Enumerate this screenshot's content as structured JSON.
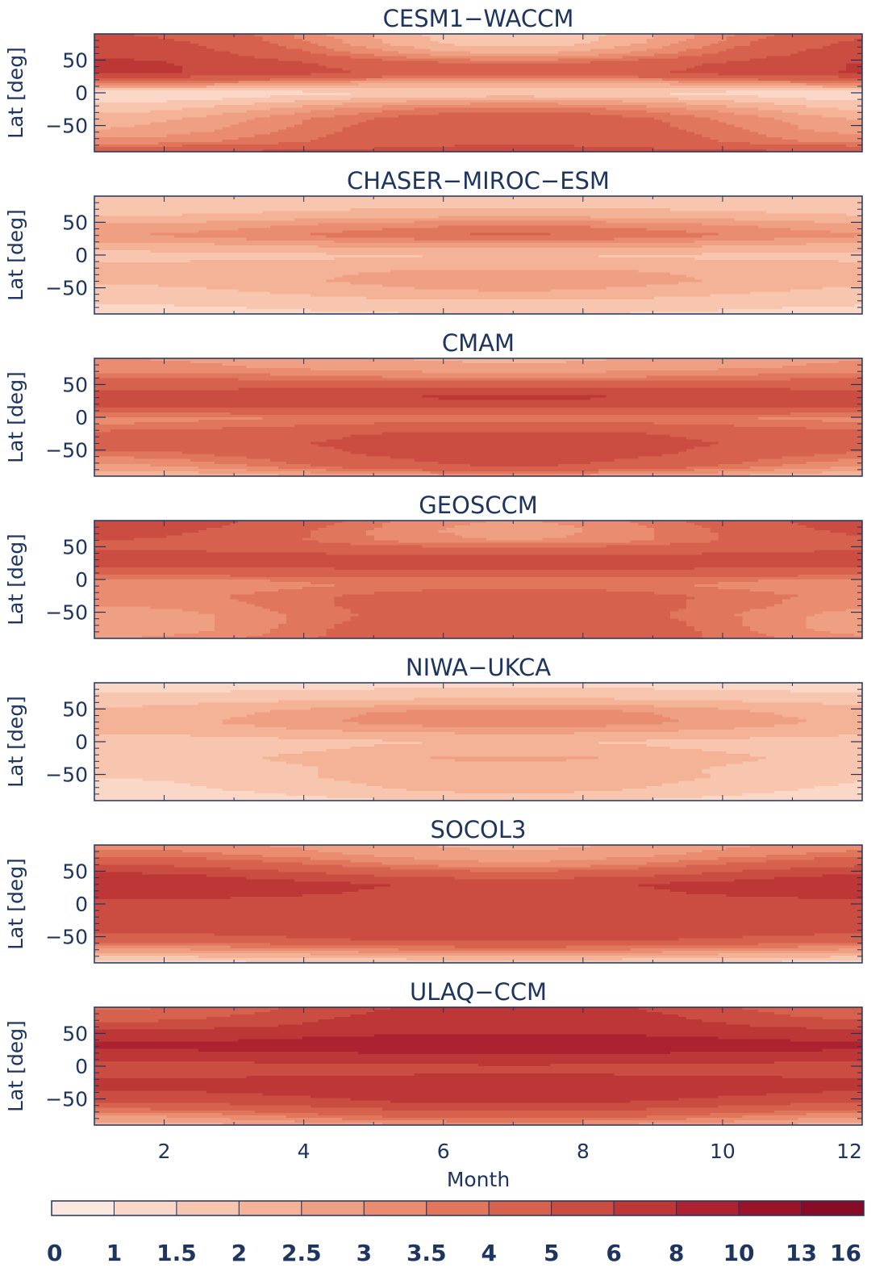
{
  "chart_data": {
    "type": "heatmap",
    "x_label": "Month",
    "y_label": "Lat [deg]",
    "xlim": [
      1,
      12
    ],
    "ylim": [
      -90,
      90
    ],
    "x_ticks": [
      2,
      4,
      6,
      8,
      10,
      12
    ],
    "y_ticks": [
      50,
      0,
      -50
    ],
    "y_tick_labels": [
      "50",
      "0",
      "−50"
    ],
    "colorbar": {
      "bounds": [
        "0",
        "1",
        "1.5",
        "2",
        "2.5",
        "3",
        "3.5",
        "4",
        "5",
        "6",
        "8",
        "10",
        "13",
        "16"
      ],
      "colors": [
        "#fde8df",
        "#fbd7c7",
        "#f8c5ae",
        "#f4b297",
        "#f0a082",
        "#e98c6f",
        "#e0775d",
        "#d6624d",
        "#cb4d41",
        "#bd3737",
        "#ad2230",
        "#9a1429",
        "#860b24"
      ]
    },
    "panels": [
      {
        "title": "CESM1−WACCM",
        "lat_nodes": [
          -90,
          -75,
          -55,
          -40,
          -25,
          -10,
          0,
          15,
          30,
          45,
          60,
          75,
          90
        ],
        "jan": [
          5.0,
          3.2,
          2.5,
          2.3,
          1.8,
          1.3,
          1.1,
          3.5,
          6.2,
          6.2,
          5.8,
          5.5,
          5.0
        ],
        "jul": [
          5.5,
          4.8,
          4.8,
          4.6,
          3.8,
          2.4,
          1.5,
          2.3,
          4.5,
          4.0,
          2.5,
          1.7,
          1.6
        ]
      },
      {
        "title": "CHASER−MIROC−ESM",
        "lat_nodes": [
          -90,
          -75,
          -55,
          -40,
          -25,
          -10,
          0,
          15,
          30,
          45,
          60,
          75,
          90
        ],
        "jan": [
          1.3,
          1.5,
          1.8,
          2.1,
          2.2,
          2.0,
          1.8,
          2.3,
          3.0,
          2.6,
          2.0,
          1.7,
          1.5
        ],
        "jul": [
          1.5,
          1.8,
          2.5,
          2.8,
          2.6,
          2.1,
          2.0,
          2.8,
          4.1,
          3.5,
          2.4,
          1.9,
          1.7
        ]
      },
      {
        "title": "CMAM",
        "lat_nodes": [
          -90,
          -75,
          -55,
          -40,
          -25,
          -10,
          0,
          15,
          30,
          45,
          60,
          75,
          90
        ],
        "jan": [
          2.0,
          2.8,
          3.8,
          4.5,
          4.2,
          3.5,
          3.3,
          5.0,
          5.5,
          4.8,
          4.0,
          3.2,
          3.0
        ],
        "jul": [
          2.8,
          5.0,
          5.6,
          5.5,
          5.3,
          4.2,
          3.7,
          5.0,
          6.2,
          5.2,
          3.5,
          2.6,
          2.4
        ]
      },
      {
        "title": "GEOSCCM",
        "lat_nodes": [
          -90,
          -75,
          -55,
          -40,
          -25,
          -10,
          0,
          15,
          30,
          45,
          60,
          75,
          90
        ],
        "jan": [
          3.0,
          2.5,
          2.6,
          3.0,
          3.2,
          3.0,
          3.4,
          4.8,
          5.8,
          5.0,
          5.0,
          5.4,
          5.8
        ],
        "jul": [
          4.8,
          5.0,
          4.6,
          4.6,
          4.5,
          3.8,
          3.8,
          5.0,
          5.4,
          4.4,
          3.0,
          2.8,
          3.0
        ]
      },
      {
        "title": "NIWA−UKCA",
        "lat_nodes": [
          -90,
          -75,
          -55,
          -40,
          -25,
          -10,
          0,
          15,
          30,
          45,
          60,
          75,
          90
        ],
        "jan": [
          1.0,
          1.3,
          1.5,
          1.6,
          1.7,
          1.6,
          1.7,
          2.1,
          2.3,
          2.1,
          1.9,
          1.5,
          1.3
        ],
        "jul": [
          1.6,
          2.1,
          2.4,
          2.3,
          2.6,
          2.2,
          2.0,
          2.6,
          3.4,
          3.3,
          2.3,
          1.6,
          1.4
        ]
      },
      {
        "title": "SOCOL3",
        "lat_nodes": [
          -90,
          -75,
          -55,
          -40,
          -25,
          -10,
          0,
          15,
          30,
          45,
          60,
          75,
          90
        ],
        "jan": [
          1.3,
          2.3,
          4.5,
          5.2,
          5.5,
          5.2,
          5.5,
          6.6,
          6.9,
          6.2,
          5.0,
          3.8,
          3.3
        ],
        "jul": [
          1.5,
          3.0,
          5.2,
          5.8,
          5.8,
          5.2,
          5.0,
          5.6,
          5.8,
          4.4,
          3.2,
          2.6,
          2.4
        ]
      },
      {
        "title": "ULAQ−CCM",
        "lat_nodes": [
          -90,
          -75,
          -55,
          -40,
          -25,
          -10,
          0,
          15,
          30,
          45,
          60,
          75,
          90
        ],
        "jan": [
          2.2,
          3.0,
          5.0,
          5.8,
          6.8,
          5.0,
          5.2,
          6.8,
          8.5,
          7.2,
          5.5,
          4.5,
          3.8
        ],
        "jul": [
          3.0,
          4.5,
          6.2,
          6.8,
          7.2,
          5.8,
          5.8,
          7.5,
          9.5,
          8.5,
          7.0,
          6.8,
          6.5
        ]
      }
    ]
  }
}
